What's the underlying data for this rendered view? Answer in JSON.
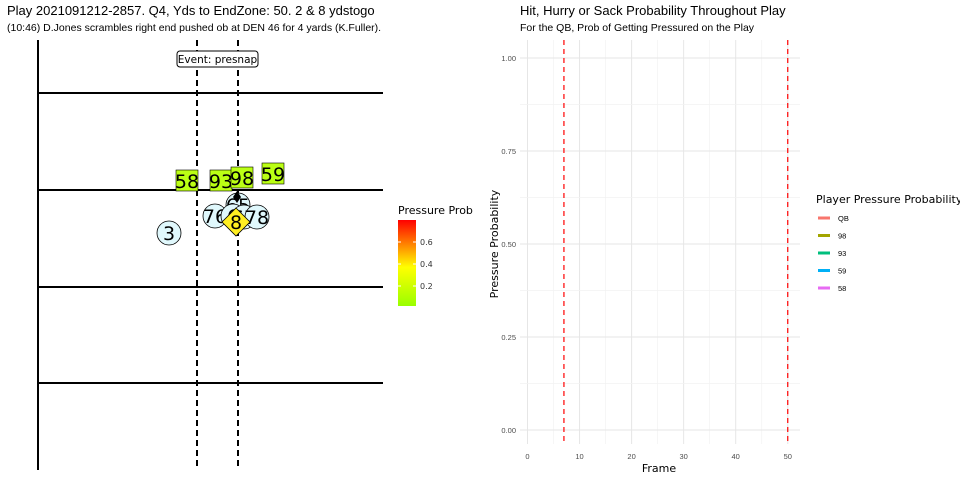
{
  "field": {
    "title": "Play 2021091212-2857. Q4, Yds to EndZone: 50. 2 & 8 ydstogo",
    "subtitle": "(10:46) D.Jones scrambles right end pushed ob at DEN 46 for 4 yards (K.Fuller).",
    "event_label": "Event: presnap",
    "legend_title": "Pressure Prob",
    "legend_ticks": [
      "0.2",
      "0.4",
      "0.6"
    ],
    "colors": {
      "low": "#99ff00",
      "mid": "#ffff00",
      "high": "#ff0000"
    },
    "defenders": [
      {
        "label": "58",
        "prob": 0.12
      },
      {
        "label": "93",
        "prob": 0.12
      },
      {
        "label": "98",
        "prob": 0.12
      },
      {
        "label": "59",
        "prob": 0.11
      }
    ],
    "offense_labels": [
      "3",
      "76",
      "65",
      "6",
      "67",
      "78"
    ],
    "qb_label": "8",
    "ball_carrier_label": "8"
  },
  "chart_data": {
    "type": "line",
    "title": "Hit, Hurry or Sack Probability Throughout Play",
    "subtitle": "For the QB, Prob of Getting Pressured on the Play",
    "xlabel": "Frame",
    "ylabel": "Pressure Probability",
    "xlim": [
      0,
      52
    ],
    "ylim": [
      0,
      1
    ],
    "x_ticks": [
      "0",
      "10",
      "20",
      "30",
      "40",
      "50"
    ],
    "y_ticks": [
      "0.00",
      "0.25",
      "0.50",
      "0.75",
      "1.00"
    ],
    "vlines": [
      7,
      50
    ],
    "vline_color": "#ff0000",
    "grid": true,
    "legend_title": "Player Pressure Probability",
    "legend_position": "right",
    "series": [
      {
        "name": "QB",
        "color": "#f8766d",
        "x": [],
        "y": []
      },
      {
        "name": "98",
        "color": "#a3a500",
        "x": [],
        "y": []
      },
      {
        "name": "93",
        "color": "#00bf7d",
        "x": [],
        "y": []
      },
      {
        "name": "59",
        "color": "#00b0f6",
        "x": [],
        "y": []
      },
      {
        "name": "58",
        "color": "#e76bf3",
        "x": [],
        "y": []
      }
    ]
  }
}
